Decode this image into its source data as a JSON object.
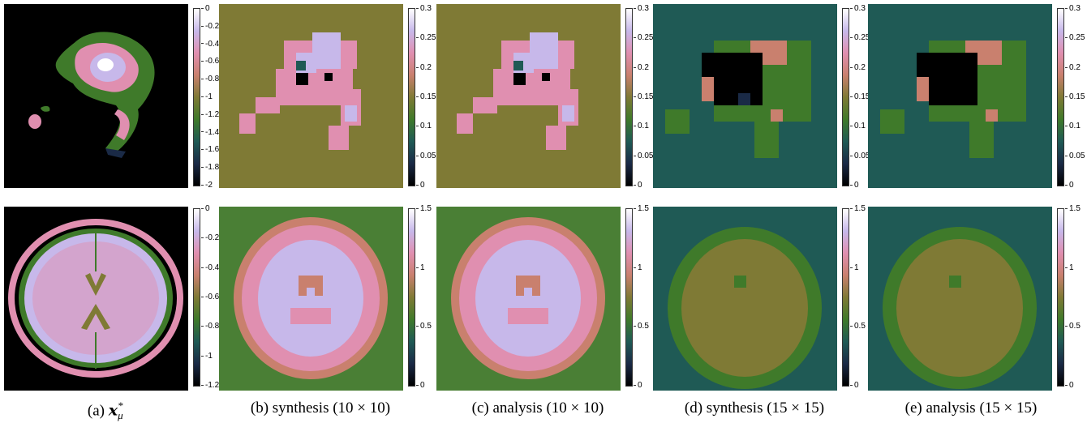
{
  "figure": {
    "captions": [
      {
        "id": "a",
        "label": "(a)",
        "math": "x",
        "sub": "μ",
        "sup": "*"
      },
      {
        "id": "b",
        "text": "(b) synthesis (10 × 10)"
      },
      {
        "id": "c",
        "text": "(c) analysis (10 × 10)"
      },
      {
        "id": "d",
        "text": "(d) synthesis (15 × 15)"
      },
      {
        "id": "e",
        "text": "(e) analysis (15 × 15)"
      }
    ],
    "colormap": [
      "#000000",
      "#1a2a46",
      "#1f5a55",
      "#3f7a2a",
      "#7f7a35",
      "#c9806e",
      "#e08fb0",
      "#c7b8ea",
      "#ffffff"
    ],
    "rows": [
      {
        "name": "tumor",
        "colorbars": [
          {
            "ticks": [
              "0",
              "-0.2",
              "-0.4",
              "-0.6",
              "-0.8",
              "-1",
              "-1.2",
              "-1.4",
              "-1.6",
              "-1.8",
              "-2"
            ]
          },
          {
            "ticks": [
              "0.3",
              "0.25",
              "0.2",
              "0.15",
              "0.1",
              "0.05",
              "0"
            ]
          },
          {
            "ticks": [
              "0.3",
              "0.25",
              "0.2",
              "0.15",
              "0.1",
              "0.05",
              "0"
            ]
          },
          {
            "ticks": [
              "0.3",
              "0.25",
              "0.2",
              "0.15",
              "0.1",
              "0.05",
              "0"
            ]
          },
          {
            "ticks": [
              "0.3",
              "0.25",
              "0.2",
              "0.15",
              "0.1",
              "0.05",
              "0"
            ]
          }
        ]
      },
      {
        "name": "brain",
        "colorbars": [
          {
            "ticks": [
              "0",
              "-0.2",
              "-0.4",
              "-0.6",
              "-0.8",
              "-1",
              "-1.2"
            ]
          },
          {
            "ticks": [
              "1.5",
              "1",
              "0.5",
              "0"
            ]
          },
          {
            "ticks": [
              "1.5",
              "1",
              "0.5",
              "0"
            ]
          },
          {
            "ticks": [
              "1.5",
              "1",
              "0.5",
              "0"
            ]
          },
          {
            "ticks": [
              "1.5",
              "1",
              "0.5",
              "0"
            ]
          }
        ]
      }
    ]
  }
}
